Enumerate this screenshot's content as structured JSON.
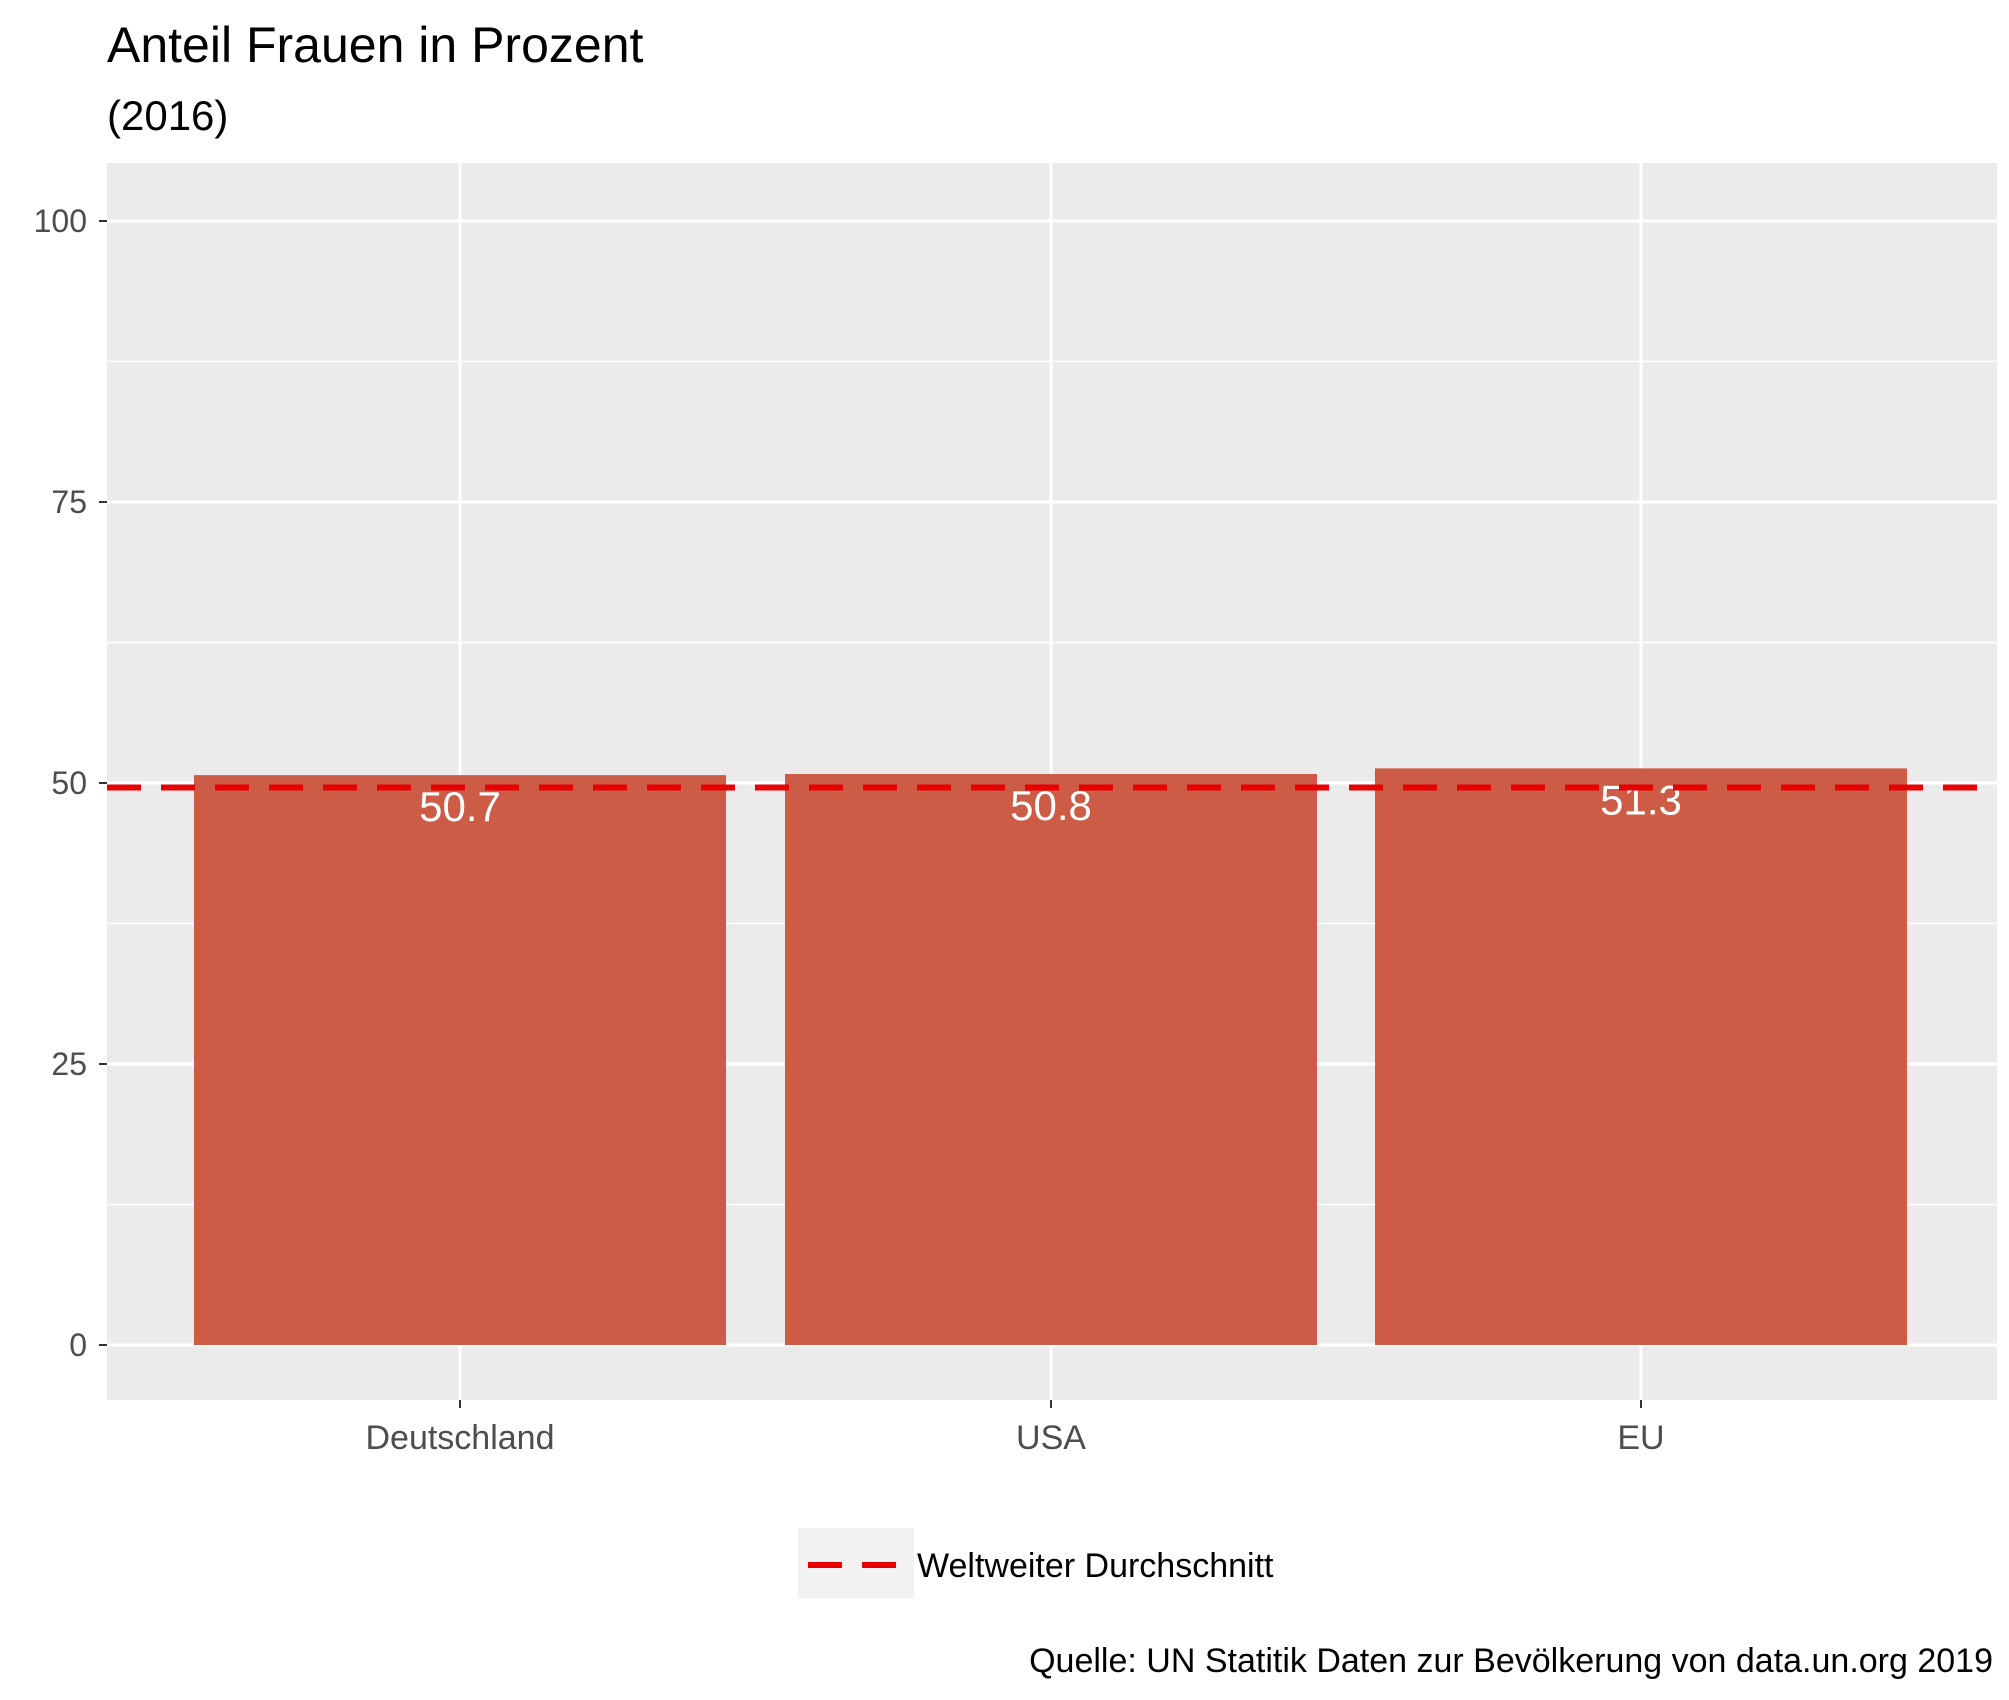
{
  "chart_data": {
    "type": "bar",
    "title": "Anteil Frauen in Prozent",
    "subtitle": "(2016)",
    "categories": [
      "Deutschland",
      "USA",
      "EU"
    ],
    "values": [
      50.7,
      50.8,
      51.3
    ],
    "value_labels": [
      "50.7",
      "50.8",
      "51.3"
    ],
    "ylim": [
      0,
      100
    ],
    "yticks": [
      0,
      25,
      50,
      75,
      100
    ],
    "ytick_labels": [
      "0",
      "25",
      "50",
      "75",
      "100"
    ],
    "reference_line": {
      "name": "Weltweiter Durchschnitt",
      "value": 49.6,
      "style": "dashed"
    },
    "legend": {
      "position": "bottom",
      "label": "Weltweiter Durchschnitt"
    },
    "caption": "Quelle: UN Statitik Daten zur Bevölkerung von data.un.org 2019",
    "grid": true,
    "colors": {
      "bar": "#cd5c47",
      "reference_line": "#e60000",
      "panel": "#ebebeb",
      "grid": "#ffffff"
    }
  }
}
